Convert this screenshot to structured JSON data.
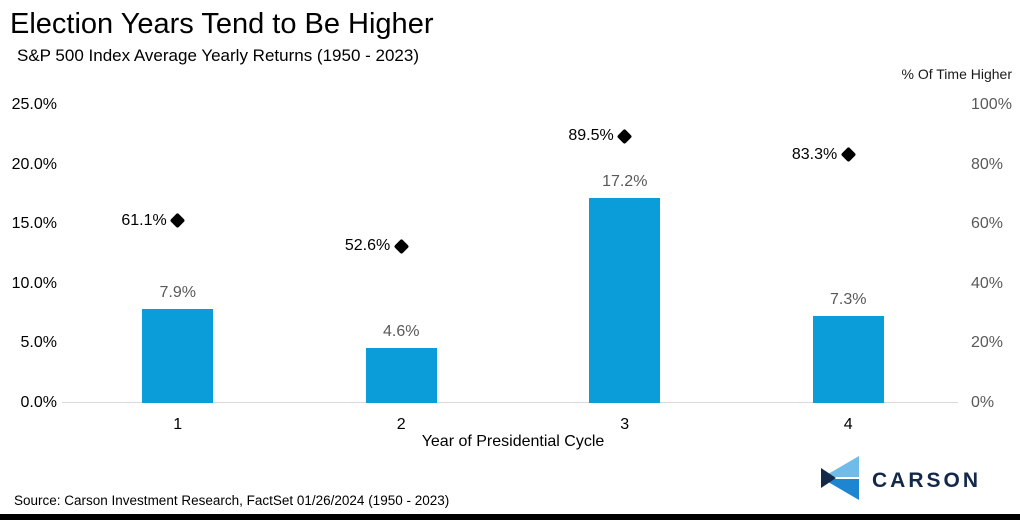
{
  "chart_data": {
    "type": "bar",
    "title": "Election Years Tend to Be Higher",
    "subtitle": "S&P 500 Index Average Yearly Returns (1950 - 2023)",
    "xlabel": "Year of Presidential Cycle",
    "right_axis_label": "% Of Time Higher",
    "categories": [
      "1",
      "2",
      "3",
      "4"
    ],
    "series": [
      {
        "name": "Average Yearly Return",
        "render": "bar",
        "axis": "left",
        "color": "#0a9dda",
        "values": [
          7.9,
          4.6,
          17.2,
          7.3
        ],
        "labels": [
          "7.9%",
          "4.6%",
          "17.2%",
          "7.3%"
        ]
      },
      {
        "name": "% Of Time Higher",
        "render": "scatter",
        "marker": "diamond",
        "axis": "right",
        "color": "#000000",
        "values": [
          61.1,
          52.6,
          89.5,
          83.3
        ],
        "labels": [
          "61.1%",
          "52.6%",
          "89.5%",
          "83.3%"
        ]
      }
    ],
    "left_axis": {
      "min": 0,
      "max": 25,
      "tick_values": [
        25,
        20,
        15,
        10,
        5,
        0
      ],
      "tick_labels": [
        "25.0%",
        "20.0%",
        "15.0%",
        "10.0%",
        "5.0%",
        "0.0%"
      ]
    },
    "right_axis": {
      "min": 0,
      "max": 100,
      "tick_values": [
        100,
        80,
        60,
        40,
        20,
        0
      ],
      "tick_labels": [
        "100%",
        "80%",
        "60%",
        "40%",
        "20%",
        "0%"
      ]
    },
    "grid": "baseline-only",
    "legend_position": "none"
  },
  "footer": {
    "source": "Source: Carson Investment Research, FactSet 01/26/2024 (1950 - 2023)",
    "logo_text": "CARSON"
  },
  "colors": {
    "bar_blue": "#0a9dda",
    "marker_black": "#000000",
    "baseline_gray": "#d9d9d9",
    "muted_text": "#595959",
    "logo_navy": "#14294a",
    "logo_light_blue": "#6fbce9",
    "logo_mid_blue": "#1e86d1"
  }
}
